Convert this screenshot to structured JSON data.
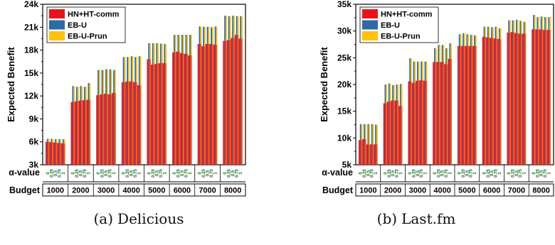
{
  "colors": {
    "hn": "#e8141b",
    "ebu": "#2e6aa8",
    "prun": "#ffc20e",
    "alpha_text": "#1a6b1a"
  },
  "chart_data": [
    {
      "type": "bar",
      "caption_label": "(a)",
      "caption_text": "Delicious",
      "ylabel": "Expected Benefit",
      "xlabel_alpha": "α-value",
      "xlabel_budget": "Budget",
      "ylim": [
        3000,
        24000
      ],
      "yticks": [
        3000,
        6000,
        9000,
        12000,
        15000,
        18000,
        21000,
        24000
      ],
      "ytick_labels": [
        "3k",
        "6k",
        "9k",
        "12k",
        "15k",
        "18k",
        "21k",
        "24k"
      ],
      "budgets": [
        "1000",
        "2000",
        "3000",
        "4000",
        "5000",
        "6000",
        "7000",
        "8000"
      ],
      "alpha_values": [
        "0",
        "0.25",
        "0.5",
        "0.75",
        "1"
      ],
      "legend": [
        "HN+HT-comm",
        "EB-U",
        "EB-U-Prun"
      ],
      "legend_position": "top-left",
      "hn_values": [
        [
          6000,
          5950,
          5900,
          5850,
          5800
        ],
        [
          11200,
          11300,
          11400,
          11450,
          11500
        ],
        [
          12100,
          12200,
          12300,
          12200,
          12400
        ],
        [
          13800,
          13900,
          13900,
          13800,
          13400
        ],
        [
          16800,
          16100,
          16200,
          16300,
          16300
        ],
        [
          17700,
          17800,
          17600,
          17500,
          17300
        ],
        [
          18800,
          18500,
          18800,
          18800,
          18700
        ],
        [
          19200,
          19300,
          19600,
          20000,
          19500
        ]
      ],
      "eb_values": [
        [
          6400,
          6400,
          6350,
          6350,
          6350
        ],
        [
          13300,
          13200,
          13300,
          13200,
          13700
        ],
        [
          15400,
          15400,
          15500,
          15500,
          15400
        ],
        [
          17100,
          17100,
          17200,
          17100,
          17200
        ],
        [
          18900,
          18900,
          18900,
          18850,
          18800
        ],
        [
          20000,
          20000,
          20000,
          20000,
          20000
        ],
        [
          21100,
          21050,
          21050,
          21000,
          21100
        ],
        [
          22500,
          22450,
          22500,
          22450,
          22450
        ]
      ]
    },
    {
      "type": "bar",
      "caption_label": "(b)",
      "caption_text": "Last.fm",
      "ylabel": "Expected Benefit",
      "xlabel_alpha": "α-value",
      "xlabel_budget": "Budget",
      "ylim": [
        5000,
        35000
      ],
      "yticks": [
        5000,
        10000,
        15000,
        20000,
        25000,
        30000,
        35000
      ],
      "ytick_labels": [
        "5k",
        "10k",
        "15k",
        "20k",
        "25k",
        "30k",
        "35k"
      ],
      "budgets": [
        "1000",
        "2000",
        "3000",
        "4000",
        "5000",
        "6000",
        "7000",
        "8000"
      ],
      "alpha_values": [
        "0",
        "0.25",
        "0.5",
        "0.75",
        "1"
      ],
      "legend": [
        "HN+HT-comm",
        "EB-U",
        "EB-U-Prun"
      ],
      "legend_position": "top-left",
      "hn_values": [
        [
          9600,
          9800,
          8800,
          8800,
          8800
        ],
        [
          16500,
          16800,
          17000,
          17000,
          16000
        ],
        [
          20600,
          20300,
          20700,
          20800,
          20700
        ],
        [
          24200,
          24200,
          24200,
          23800,
          24800
        ],
        [
          27200,
          27200,
          27200,
          27200,
          27200
        ],
        [
          28900,
          28800,
          28700,
          28600,
          28500
        ],
        [
          29700,
          29800,
          29600,
          29500,
          29500
        ],
        [
          30300,
          30300,
          30300,
          30200,
          30200
        ]
      ],
      "eb_values": [
        [
          12600,
          12600,
          12600,
          12600,
          12500
        ],
        [
          20000,
          20200,
          19900,
          20000,
          20100
        ],
        [
          24900,
          24300,
          24300,
          24300,
          24300
        ],
        [
          26800,
          27400,
          27400,
          26800,
          27700
        ],
        [
          29400,
          29600,
          29400,
          29300,
          29200
        ],
        [
          30800,
          30800,
          30700,
          30800,
          30500
        ],
        [
          32000,
          32000,
          32100,
          31900,
          31700
        ],
        [
          33000,
          32600,
          32700,
          32600,
          32600
        ]
      ]
    }
  ]
}
